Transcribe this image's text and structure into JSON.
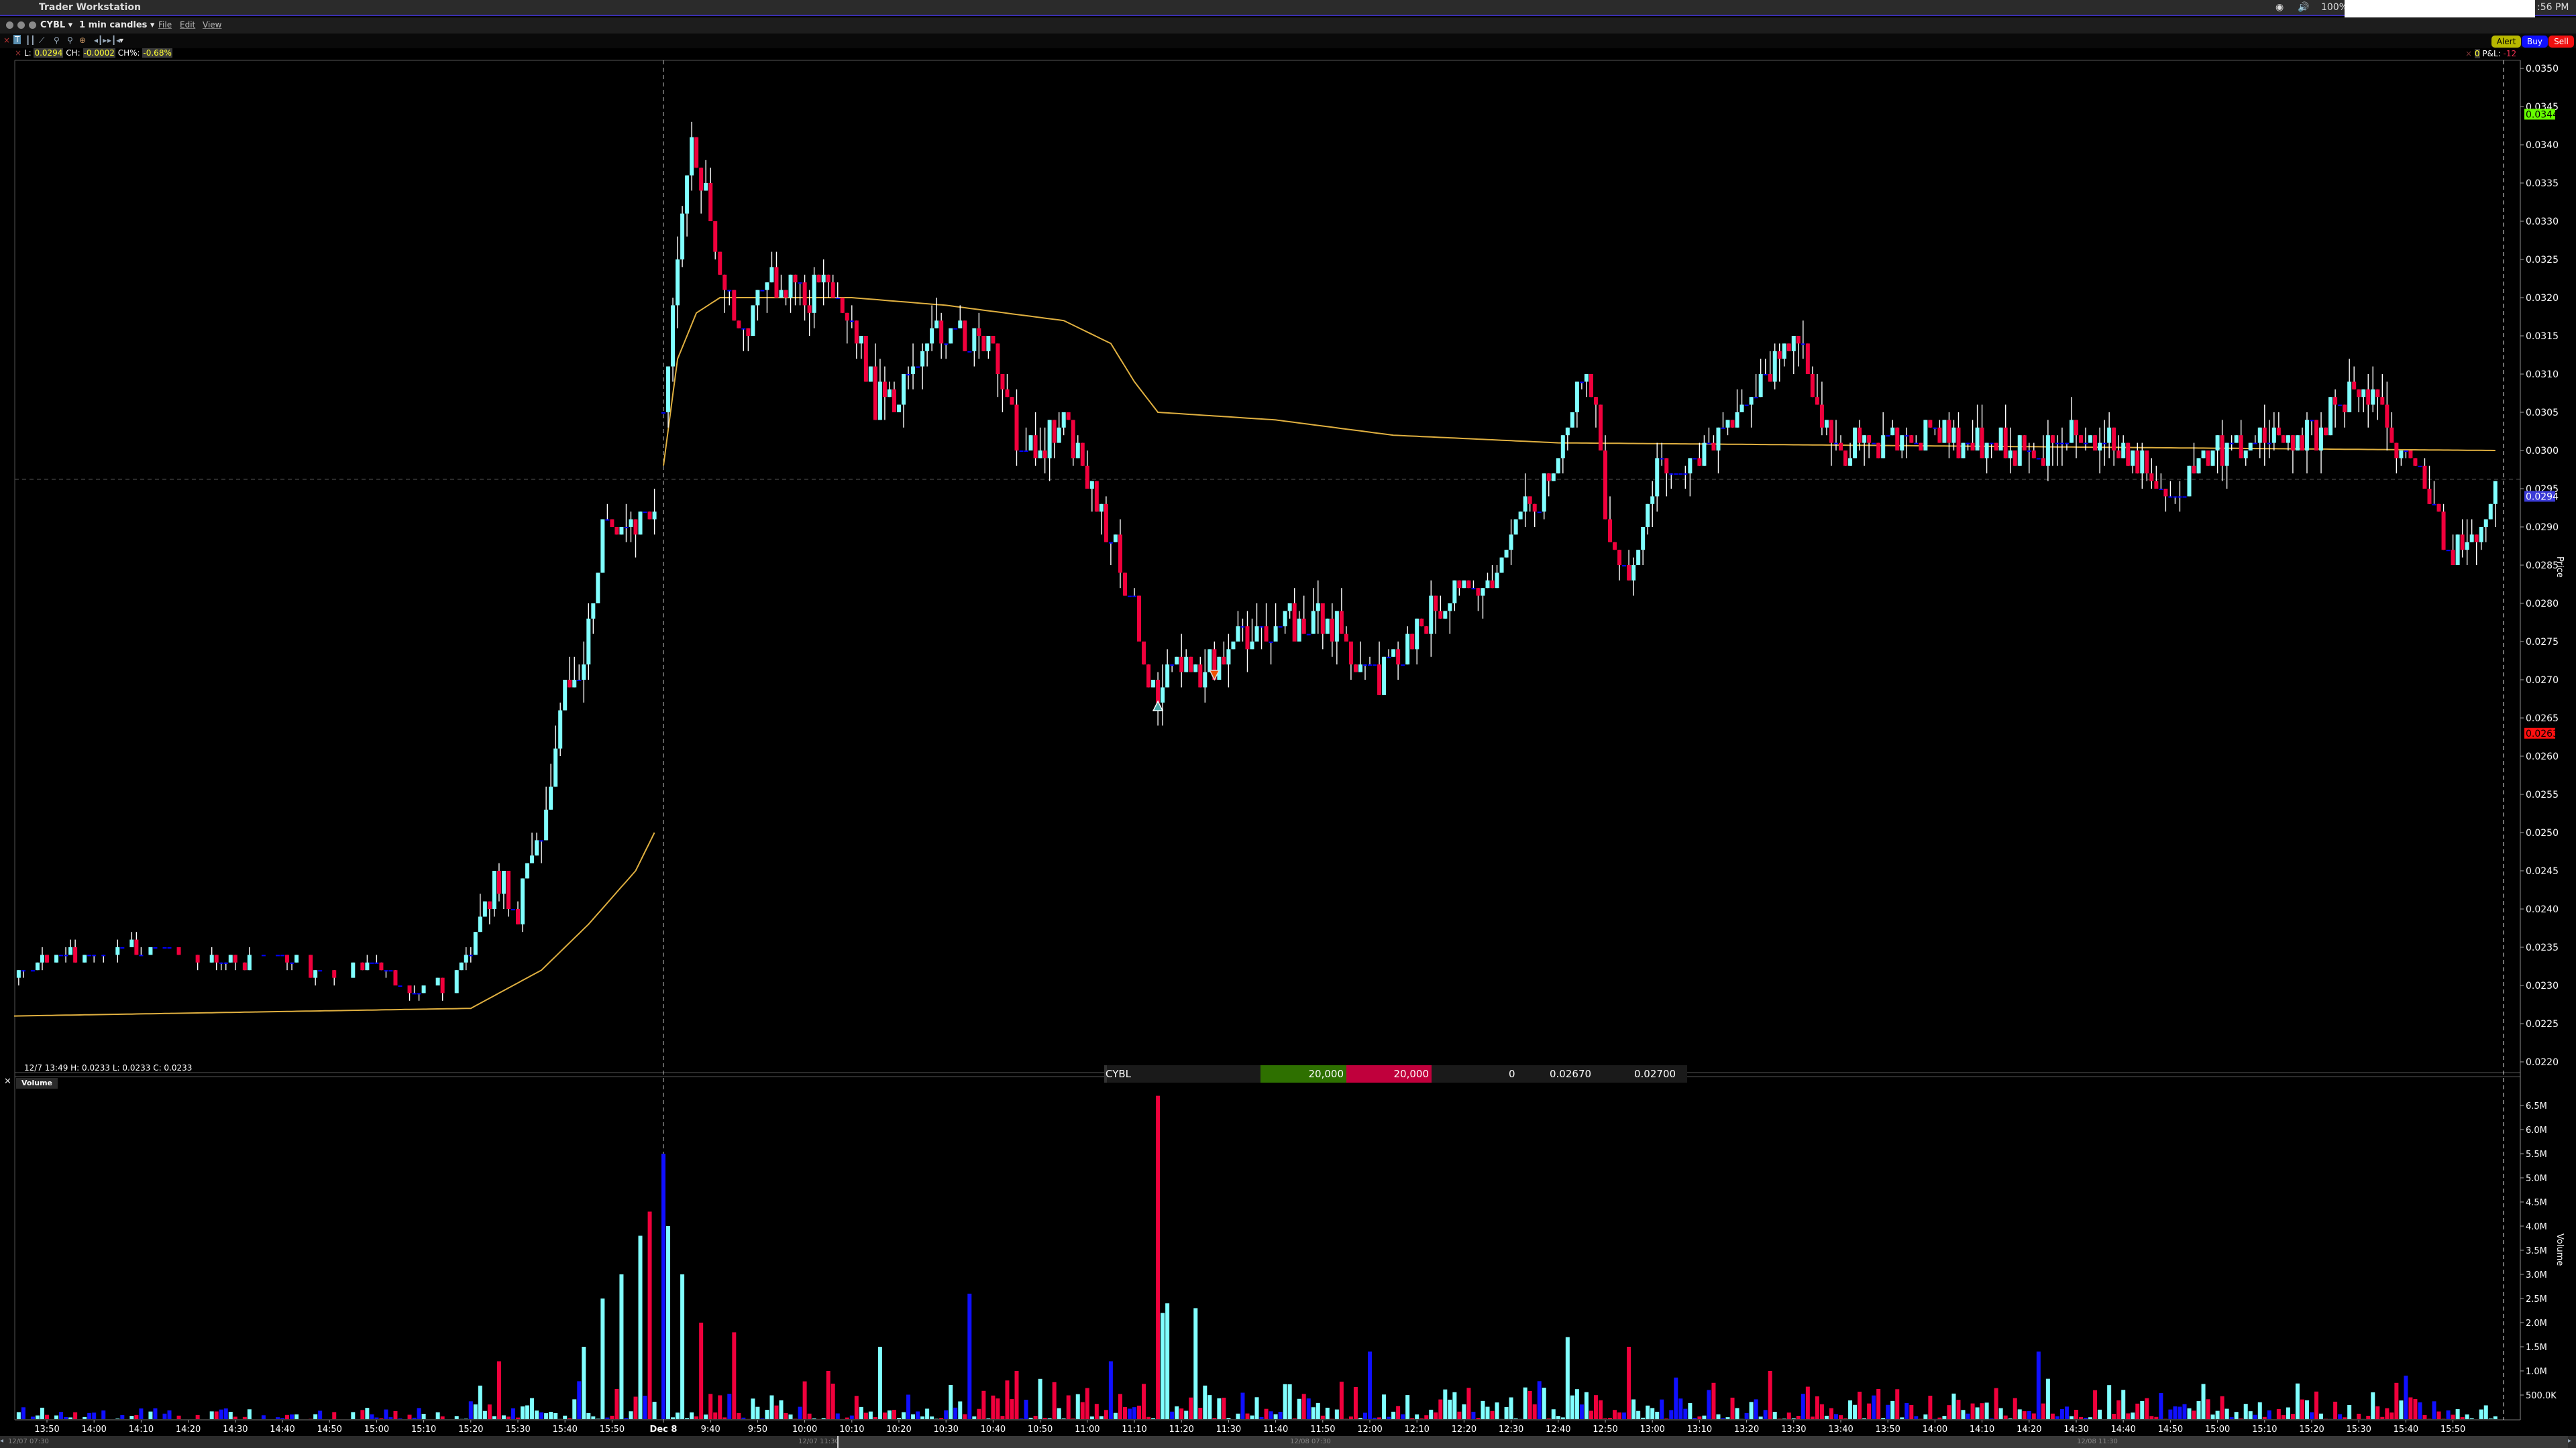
{
  "menubar": {
    "app_name": "Trader Workstation",
    "zoom": "100%",
    "clock": ":56 PM"
  },
  "window": {
    "symbol": "CYBL ▾",
    "interval": "1 min candles ▾",
    "menus": [
      "File",
      "Edit",
      "View"
    ]
  },
  "toolbar": {
    "icons": [
      "close-icon",
      "text-icon",
      "bars-icon",
      "draw-line-icon",
      "zoom-in-icon",
      "zoom-out-icon",
      "crosshair-icon",
      "expand-icon",
      "compress-icon",
      "dropdown-icon"
    ]
  },
  "actions": {
    "alert": "Alert",
    "buy": "Buy",
    "sell": "Sell"
  },
  "legend": {
    "l_label": "L:",
    "l_value": "0.0294",
    "ch_label": "CH:",
    "ch_value": "-0.0002",
    "chp_label": "CH%:",
    "chp_value": "-0.68%"
  },
  "pnl": {
    "position": "0",
    "label": "P&L:",
    "value": "-12"
  },
  "ohlc_readout": "12/7 13:49  H: 0.0233  L: 0.0233  C: 0.0233",
  "volume_tag": "Volume",
  "order_row": {
    "symbol": "CYBL",
    "buy_qty": "20,000",
    "sell_qty": "20,000",
    "position": "0",
    "buy_price": "0.02670",
    "sell_price": "0.02700"
  },
  "scrollbar": {
    "labels": [
      "12/07 07:30",
      "12/07 11:30",
      "12/08 07:30",
      "12/08 11:30"
    ]
  },
  "colors": {
    "up": "#80ffff",
    "down": "#f0003c",
    "unchanged": "#0000ff",
    "vwap": "#e0b040",
    "last_price": "#3b3bd6",
    "high_marker": "#66ff00",
    "low_marker": "#ff1010"
  },
  "chart_data": {
    "type": "candlestick",
    "price_axis": {
      "label": "Price",
      "ylim": [
        0.022,
        0.035
      ],
      "ticks": [
        "0.0350",
        "0.0345",
        "0.0340",
        "0.0335",
        "0.0330",
        "0.0325",
        "0.0320",
        "0.0315",
        "0.0310",
        "0.0305",
        "0.0300",
        "0.0295",
        "0.0290",
        "0.0285",
        "0.0280",
        "0.0275",
        "0.0270",
        "0.0265",
        "0.0260",
        "0.0255",
        "0.0250",
        "0.0245",
        "0.0240",
        "0.0235",
        "0.0230",
        "0.0225",
        "0.0220"
      ],
      "markers": {
        "high": "0.0344",
        "last": "0.0294",
        "low": "0.0263"
      }
    },
    "volume_axis": {
      "label": "Volume",
      "ticks": [
        "6.5M",
        "6.0M",
        "5.5M",
        "5.0M",
        "4.5M",
        "4.0M",
        "3.5M",
        "3.0M",
        "2.5M",
        "2.0M",
        "1.5M",
        "1.0M",
        "500.0K"
      ]
    },
    "time_axis": {
      "day1": [
        "13:50",
        "14:00",
        "14:10",
        "14:20",
        "14:30",
        "14:40",
        "14:50",
        "15:00",
        "15:10",
        "15:20",
        "15:30",
        "15:40",
        "15:50"
      ],
      "day_break": "Dec 8",
      "day2": [
        "9:40",
        "9:50",
        "10:00",
        "10:10",
        "10:20",
        "10:30",
        "10:40",
        "10:50",
        "11:00",
        "11:10",
        "11:20",
        "11:30",
        "11:40",
        "11:50",
        "12:00",
        "12:10",
        "12:20",
        "12:30",
        "12:40",
        "12:50",
        "13:00",
        "13:10",
        "13:20",
        "13:30",
        "13:40",
        "13:50",
        "14:00",
        "14:10",
        "14:20",
        "14:30",
        "14:40",
        "14:50",
        "15:00",
        "15:10",
        "15:20",
        "15:30",
        "15:40",
        "15:50"
      ]
    },
    "price_path": {
      "day1": [
        [
          "13:43",
          0.0231
        ],
        [
          "13:50",
          0.0234
        ],
        [
          "14:00",
          0.0234
        ],
        [
          "14:10",
          0.0235
        ],
        [
          "14:20",
          0.0234
        ],
        [
          "14:30",
          0.0233
        ],
        [
          "14:40",
          0.0234
        ],
        [
          "14:50",
          0.0231
        ],
        [
          "15:00",
          0.0234
        ],
        [
          "15:05",
          0.0229
        ],
        [
          "15:15",
          0.023
        ],
        [
          "15:20",
          0.0235
        ],
        [
          "15:25",
          0.0244
        ],
        [
          "15:30",
          0.024
        ],
        [
          "15:35",
          0.025
        ],
        [
          "15:40",
          0.0268
        ],
        [
          "15:44",
          0.0272
        ],
        [
          "15:48",
          0.029
        ],
        [
          "15:52",
          0.0288
        ],
        [
          "15:56",
          0.0291
        ],
        [
          "15:59",
          0.0294
        ]
      ],
      "day2": [
        [
          "9:30",
          0.0305
        ],
        [
          "9:33",
          0.0325
        ],
        [
          "9:36",
          0.0342
        ],
        [
          "9:40",
          0.033
        ],
        [
          "9:44",
          0.032
        ],
        [
          "9:48",
          0.0315
        ],
        [
          "9:52",
          0.0322
        ],
        [
          "10:00",
          0.032
        ],
        [
          "10:05",
          0.0322
        ],
        [
          "10:10",
          0.0318
        ],
        [
          "10:15",
          0.0306
        ],
        [
          "10:20",
          0.0308
        ],
        [
          "10:25",
          0.0313
        ],
        [
          "10:30",
          0.0316
        ],
        [
          "10:35",
          0.0314
        ],
        [
          "10:40",
          0.0312
        ],
        [
          "10:45",
          0.0302
        ],
        [
          "10:50",
          0.03
        ],
        [
          "10:55",
          0.0304
        ],
        [
          "11:00",
          0.0296
        ],
        [
          "11:05",
          0.0288
        ],
        [
          "11:10",
          0.028
        ],
        [
          "11:14",
          0.0268
        ],
        [
          "11:18",
          0.0272
        ],
        [
          "11:25",
          0.0271
        ],
        [
          "11:30",
          0.0275
        ],
        [
          "11:40",
          0.0277
        ],
        [
          "11:50",
          0.0278
        ],
        [
          "11:55",
          0.0275
        ],
        [
          "12:00",
          0.027
        ],
        [
          "12:05",
          0.0272
        ],
        [
          "12:10",
          0.0277
        ],
        [
          "12:20",
          0.0282
        ],
        [
          "12:25",
          0.0282
        ],
        [
          "12:30",
          0.029
        ],
        [
          "12:35",
          0.0292
        ],
        [
          "12:40",
          0.03
        ],
        [
          "12:45",
          0.0309
        ],
        [
          "12:48",
          0.0305
        ],
        [
          "12:50",
          0.029
        ],
        [
          "12:55",
          0.0285
        ],
        [
          "13:00",
          0.0296
        ],
        [
          "13:05",
          0.0298
        ],
        [
          "13:10",
          0.03
        ],
        [
          "13:15",
          0.0302
        ],
        [
          "13:20",
          0.0307
        ],
        [
          "13:25",
          0.031
        ],
        [
          "13:30",
          0.0315
        ],
        [
          "13:35",
          0.0306
        ],
        [
          "13:40",
          0.03
        ],
        [
          "13:50",
          0.0301
        ],
        [
          "14:00",
          0.0302
        ],
        [
          "14:10",
          0.0301
        ],
        [
          "14:20",
          0.03
        ],
        [
          "14:30",
          0.0302
        ],
        [
          "14:40",
          0.0301
        ],
        [
          "14:50",
          0.0295
        ],
        [
          "15:00",
          0.03
        ],
        [
          "15:10",
          0.0301
        ],
        [
          "15:20",
          0.0302
        ],
        [
          "15:25",
          0.0305
        ],
        [
          "15:30",
          0.0308
        ],
        [
          "15:35",
          0.0304
        ],
        [
          "15:40",
          0.0299
        ],
        [
          "15:45",
          0.0293
        ],
        [
          "15:50",
          0.0287
        ],
        [
          "15:55",
          0.029
        ],
        [
          "15:59",
          0.0294
        ]
      ]
    },
    "vwap": {
      "day1": [
        [
          "13:43",
          0.0226
        ],
        [
          "15:20",
          0.0227
        ],
        [
          "15:35",
          0.0232
        ],
        [
          "15:45",
          0.0238
        ],
        [
          "15:55",
          0.0245
        ],
        [
          "15:59",
          0.025
        ]
      ],
      "day2": [
        [
          "9:30",
          0.0298
        ],
        [
          "9:33",
          0.0312
        ],
        [
          "9:37",
          0.0318
        ],
        [
          "9:42",
          0.032
        ],
        [
          "10:10",
          0.032
        ],
        [
          "10:30",
          0.0319
        ],
        [
          "10:55",
          0.0317
        ],
        [
          "11:05",
          0.0314
        ],
        [
          "11:10",
          0.0309
        ],
        [
          "11:15",
          0.0305
        ],
        [
          "11:40",
          0.0304
        ],
        [
          "12:05",
          0.0302
        ],
        [
          "12:40",
          0.0301
        ],
        [
          "15:59",
          0.03
        ]
      ]
    },
    "volume_spikes_millions": {
      "day1": [
        [
          "15:26",
          1.2
        ],
        [
          "15:44",
          1.5
        ],
        [
          "15:48",
          2.5
        ],
        [
          "15:52",
          3.0
        ],
        [
          "15:56",
          3.8
        ],
        [
          "15:58",
          4.3
        ]
      ],
      "day2": [
        [
          "9:30",
          5.5
        ],
        [
          "9:31",
          4.0
        ],
        [
          "9:34",
          3.0
        ],
        [
          "9:38",
          2.0
        ],
        [
          "9:45",
          1.8
        ],
        [
          "10:05",
          1.0
        ],
        [
          "10:16",
          1.5
        ],
        [
          "10:35",
          2.6
        ],
        [
          "10:45",
          1.0
        ],
        [
          "11:05",
          1.2
        ],
        [
          "11:15",
          6.7
        ],
        [
          "11:16",
          2.2
        ],
        [
          "11:17",
          2.4
        ],
        [
          "11:23",
          2.3
        ],
        [
          "12:00",
          1.4
        ],
        [
          "12:42",
          1.7
        ],
        [
          "12:55",
          1.5
        ],
        [
          "13:25",
          1.0
        ],
        [
          "14:22",
          1.4
        ],
        [
          "15:40",
          0.9
        ]
      ]
    },
    "trades": [
      {
        "side": "buy",
        "time": "11:15",
        "price": 0.0267
      },
      {
        "side": "sell",
        "time": "11:27",
        "price": 0.027
      }
    ]
  }
}
